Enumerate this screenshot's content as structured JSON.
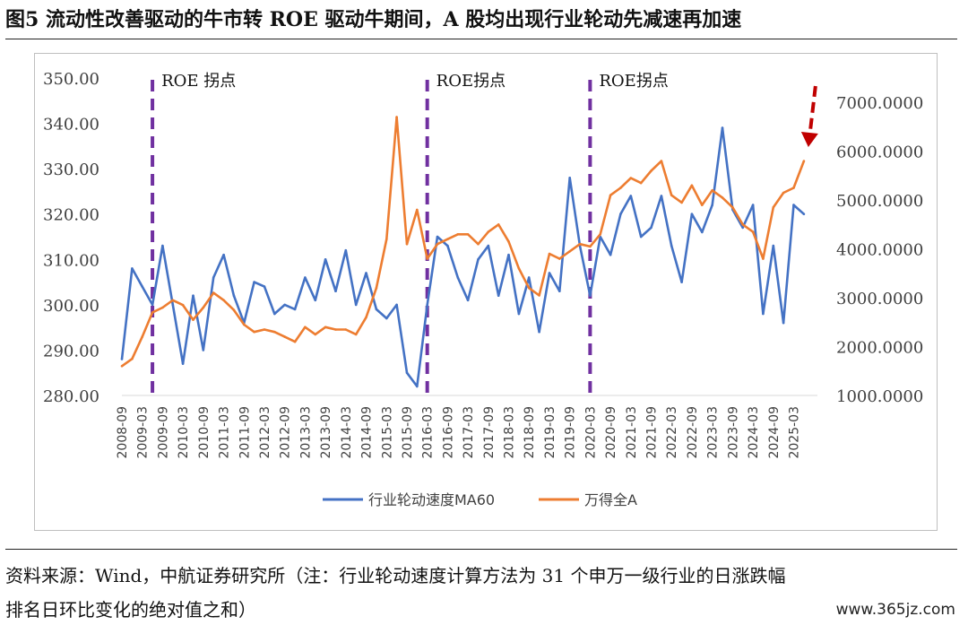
{
  "figure": {
    "title": "图5 流动性改善驱动的牛市转 ROE 驱动牛期间，A 股均出现行业轮动先减速再加速",
    "source_line1": "资料来源：Wind，中航证券研究所（注：行业轮动速度计算方法为 31 个申万一级行业的日涨跌幅",
    "source_line2": "排名日环比变化的绝对值之和）",
    "watermark": "www.365jz.com"
  },
  "colors": {
    "series_blue": "#4472c4",
    "series_orange": "#ed7d31",
    "roe_line": "#7030a0",
    "arrow": "#c00000",
    "axis_text": "#404040"
  },
  "chart_data": {
    "type": "line",
    "x_tick_labels": [
      "2008-09",
      "2009-03",
      "2009-09",
      "2010-03",
      "2010-09",
      "2011-03",
      "2011-09",
      "2012-03",
      "2012-09",
      "2013-03",
      "2013-09",
      "2014-03",
      "2014-09",
      "2015-03",
      "2015-09",
      "2016-03",
      "2016-09",
      "2017-03",
      "2017-09",
      "2018-03",
      "2018-09",
      "2019-03",
      "2019-09",
      "2020-03",
      "2020-09",
      "2021-03",
      "2021-09",
      "2022-03",
      "2022-09",
      "2023-03",
      "2023-09",
      "2024-03",
      "2024-09",
      "2025-03"
    ],
    "y_left": {
      "ticks": [
        "280.00",
        "290.00",
        "300.00",
        "310.00",
        "320.00",
        "330.00",
        "340.00",
        "350.00"
      ],
      "lim": [
        280,
        350
      ]
    },
    "y_right": {
      "ticks": [
        "1000.0000",
        "2000.0000",
        "3000.0000",
        "4000.0000",
        "5000.0000",
        "6000.0000",
        "7000.0000"
      ],
      "lim": [
        1000,
        7500
      ]
    },
    "legend_position": "bottom",
    "roe_markers": [
      {
        "label": "ROE 拐点",
        "x": "2009-06"
      },
      {
        "label": "ROE拐点",
        "x": "2016-03"
      },
      {
        "label": "ROE拐点",
        "x": "2020-03"
      }
    ],
    "series": [
      {
        "name": "行业轮动速度MA60",
        "axis": "left",
        "x": [
          "2008-09",
          "2008-12",
          "2009-03",
          "2009-06",
          "2009-09",
          "2009-12",
          "2010-03",
          "2010-06",
          "2010-09",
          "2010-12",
          "2011-03",
          "2011-06",
          "2011-09",
          "2011-12",
          "2012-03",
          "2012-06",
          "2012-09",
          "2012-12",
          "2013-03",
          "2013-06",
          "2013-09",
          "2013-12",
          "2014-03",
          "2014-06",
          "2014-09",
          "2014-12",
          "2015-03",
          "2015-06",
          "2015-09",
          "2015-12",
          "2016-03",
          "2016-06",
          "2016-09",
          "2016-12",
          "2017-03",
          "2017-06",
          "2017-09",
          "2017-12",
          "2018-03",
          "2018-06",
          "2018-09",
          "2018-12",
          "2019-03",
          "2019-06",
          "2019-09",
          "2019-12",
          "2020-03",
          "2020-06",
          "2020-09",
          "2020-12",
          "2021-03",
          "2021-06",
          "2021-09",
          "2021-12",
          "2022-03",
          "2022-06",
          "2022-09",
          "2022-12",
          "2023-03",
          "2023-06",
          "2023-09",
          "2023-12",
          "2024-03",
          "2024-06",
          "2024-09",
          "2024-12",
          "2025-03",
          "2025-06"
        ],
        "values": [
          288,
          308,
          304,
          300,
          313,
          300,
          287,
          302,
          290,
          306,
          311,
          302,
          296,
          305,
          304,
          298,
          300,
          299,
          306,
          301,
          310,
          303,
          312,
          300,
          307,
          299,
          297,
          300,
          285,
          282,
          300,
          315,
          313,
          306,
          301,
          310,
          313,
          302,
          311,
          298,
          306,
          294,
          307,
          303,
          328,
          313,
          302,
          315,
          311,
          320,
          324,
          315,
          317,
          324,
          313,
          305,
          320,
          316,
          322,
          339,
          321,
          317,
          322,
          298,
          313,
          296,
          322,
          320
        ]
      },
      {
        "name": "万得全A",
        "axis": "right",
        "x": [
          "2008-09",
          "2008-12",
          "2009-03",
          "2009-06",
          "2009-09",
          "2009-12",
          "2010-03",
          "2010-06",
          "2010-09",
          "2010-12",
          "2011-03",
          "2011-06",
          "2011-09",
          "2011-12",
          "2012-03",
          "2012-06",
          "2012-09",
          "2012-12",
          "2013-03",
          "2013-06",
          "2013-09",
          "2013-12",
          "2014-03",
          "2014-06",
          "2014-09",
          "2014-12",
          "2015-03",
          "2015-06",
          "2015-09",
          "2015-12",
          "2016-03",
          "2016-06",
          "2016-09",
          "2016-12",
          "2017-03",
          "2017-06",
          "2017-09",
          "2017-12",
          "2018-03",
          "2018-06",
          "2018-09",
          "2018-12",
          "2019-03",
          "2019-06",
          "2019-09",
          "2019-12",
          "2020-03",
          "2020-06",
          "2020-09",
          "2020-12",
          "2021-03",
          "2021-06",
          "2021-09",
          "2021-12",
          "2022-03",
          "2022-06",
          "2022-09",
          "2022-12",
          "2023-03",
          "2023-06",
          "2023-09",
          "2023-12",
          "2024-03",
          "2024-06",
          "2024-09",
          "2024-12",
          "2025-03",
          "2025-06"
        ],
        "values": [
          1600,
          1750,
          2200,
          2700,
          2800,
          2950,
          2850,
          2550,
          2800,
          3100,
          2950,
          2750,
          2450,
          2300,
          2350,
          2300,
          2200,
          2100,
          2400,
          2250,
          2400,
          2350,
          2350,
          2250,
          2600,
          3200,
          4200,
          6700,
          4100,
          4800,
          3800,
          4100,
          4200,
          4300,
          4300,
          4100,
          4350,
          4500,
          4150,
          3600,
          3200,
          3050,
          3900,
          3800,
          3950,
          4100,
          4050,
          4300,
          5100,
          5250,
          5450,
          5350,
          5600,
          5800,
          5100,
          4950,
          5300,
          4900,
          5200,
          5050,
          4850,
          4500,
          4350,
          3800,
          4850,
          5150,
          5250,
          5800
        ]
      }
    ]
  }
}
